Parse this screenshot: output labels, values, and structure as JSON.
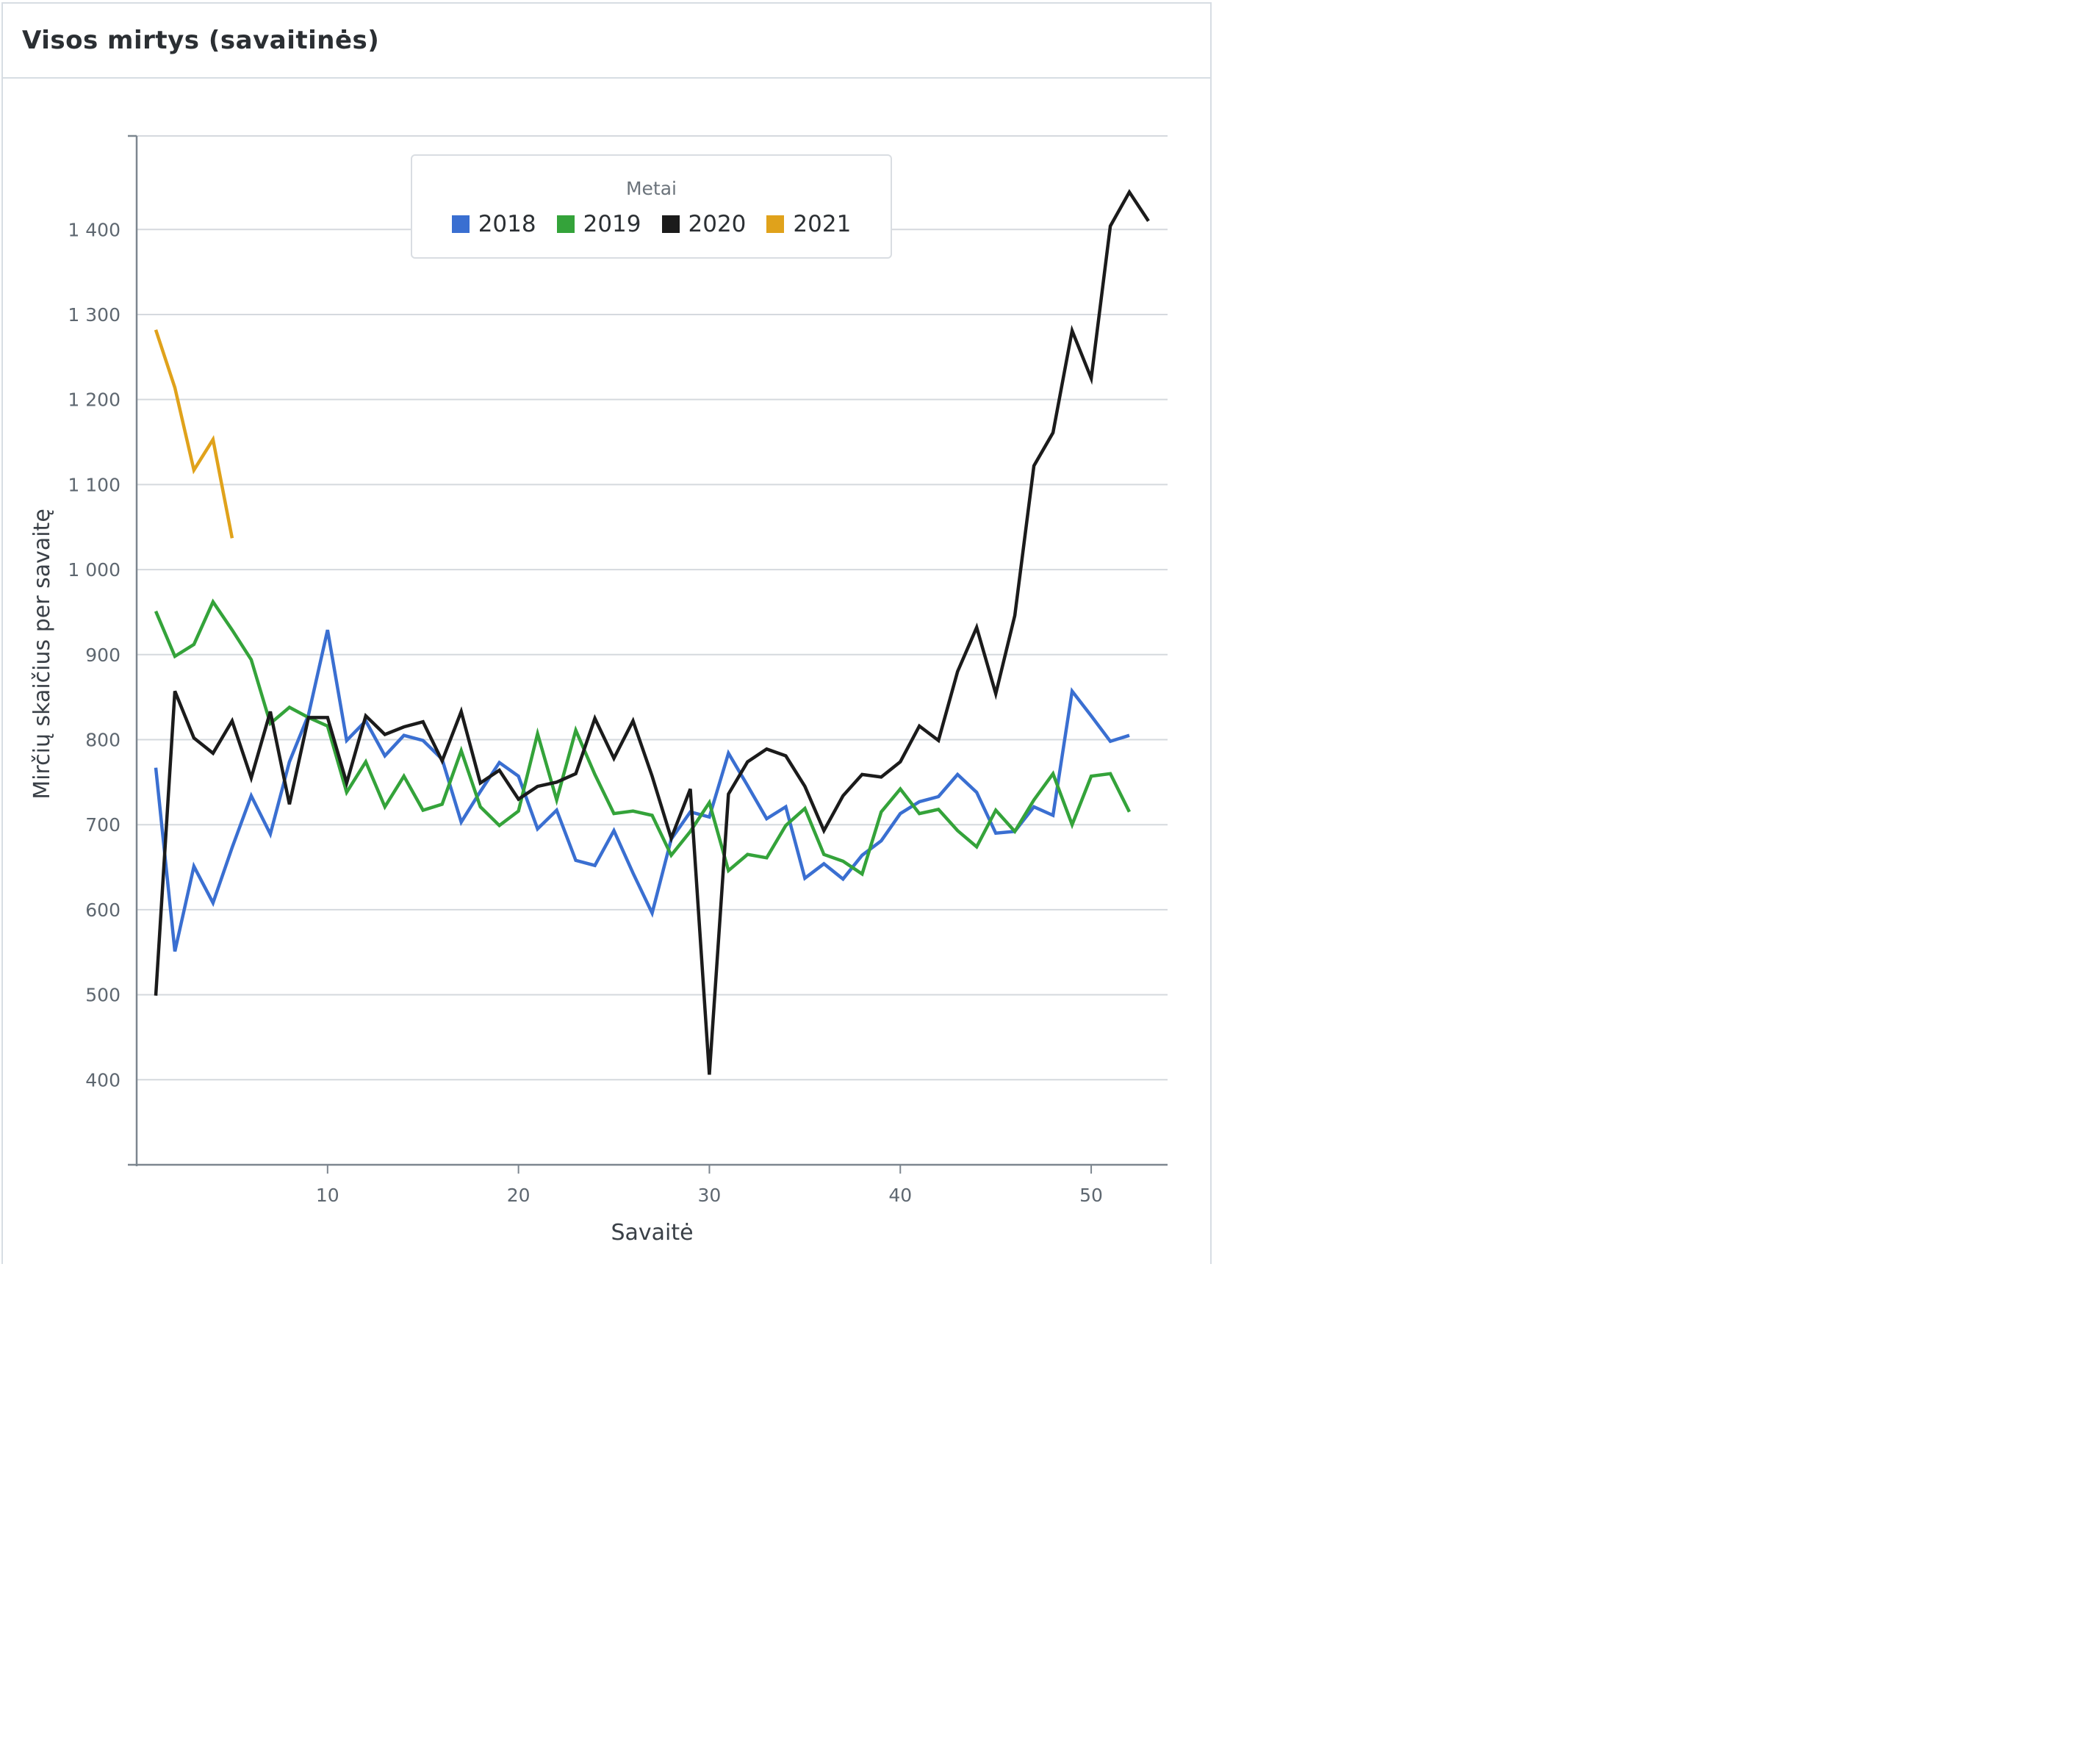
{
  "panel": {
    "title": "Visos mirtys (savaitinės)"
  },
  "colors": {
    "2018": "#3a6fd1",
    "2019": "#34a33a",
    "2020": "#1b1b1b",
    "2021": "#e0a21b",
    "grid": "#d5d9de",
    "axis": "#7d868f",
    "tick_text": "#5e6770"
  },
  "chart_data": {
    "type": "line",
    "title": "Visos mirtys (savaitinės)",
    "xlabel": "Savaitė",
    "ylabel": "Mirčių skaičius per savaitę",
    "xlim": [
      0,
      54
    ],
    "ylim": [
      300,
      1510
    ],
    "x_ticks": [
      10,
      20,
      30,
      40,
      50
    ],
    "y_ticks": [
      400,
      500,
      600,
      700,
      800,
      900,
      1000,
      1100,
      1200,
      1300,
      1400
    ],
    "y_tick_labels": [
      "400",
      "500",
      "600",
      "700",
      "800",
      "900",
      "1 000",
      "1 100",
      "1 200",
      "1 300",
      "1 400"
    ],
    "grid": true,
    "legend": {
      "title": "Metai",
      "placement": "top-center"
    },
    "series": [
      {
        "name": "2018",
        "color": "#3a6fd1",
        "x": [
          1,
          2,
          3,
          4,
          5,
          6,
          7,
          8,
          9,
          10,
          11,
          12,
          13,
          14,
          15,
          16,
          17,
          18,
          19,
          20,
          21,
          22,
          23,
          24,
          25,
          26,
          27,
          28,
          29,
          30,
          31,
          32,
          33,
          34,
          35,
          36,
          37,
          38,
          39,
          40,
          41,
          42,
          43,
          44,
          45,
          46,
          47,
          48,
          49,
          50,
          51,
          52
        ],
        "y": [
          767,
          551,
          651,
          608,
          673,
          734,
          689,
          774,
          829,
          929,
          799,
          822,
          781,
          805,
          799,
          777,
          703,
          739,
          773,
          757,
          695,
          717,
          658,
          652,
          693,
          643,
          596,
          683,
          715,
          709,
          784,
          746,
          707,
          721,
          637,
          654,
          636,
          664,
          681,
          713,
          727,
          733,
          759,
          738,
          690,
          692,
          721,
          711,
          857,
          828,
          798,
          805
        ]
      },
      {
        "name": "2019",
        "color": "#34a33a",
        "x": [
          1,
          2,
          3,
          4,
          5,
          6,
          7,
          8,
          9,
          10,
          11,
          12,
          13,
          14,
          15,
          16,
          17,
          18,
          19,
          20,
          21,
          22,
          23,
          24,
          25,
          26,
          27,
          28,
          29,
          30,
          31,
          32,
          33,
          34,
          35,
          36,
          37,
          38,
          39,
          40,
          41,
          42,
          43,
          44,
          45,
          46,
          47,
          48,
          49,
          50,
          51,
          52
        ],
        "y": [
          951,
          898,
          912,
          962,
          929,
          894,
          819,
          838,
          826,
          816,
          738,
          774,
          721,
          757,
          717,
          724,
          787,
          721,
          699,
          716,
          807,
          729,
          811,
          759,
          713,
          716,
          711,
          664,
          692,
          726,
          646,
          665,
          661,
          699,
          719,
          665,
          657,
          642,
          715,
          742,
          713,
          718,
          693,
          674,
          717,
          692,
          729,
          760,
          700,
          757,
          760,
          715
        ]
      },
      {
        "name": "2020",
        "color": "#1b1b1b",
        "x": [
          1,
          2,
          3,
          4,
          5,
          6,
          7,
          8,
          9,
          10,
          11,
          12,
          13,
          14,
          15,
          16,
          17,
          18,
          19,
          20,
          21,
          22,
          23,
          24,
          25,
          26,
          27,
          28,
          29,
          30,
          31,
          32,
          33,
          34,
          35,
          36,
          37,
          38,
          39,
          40,
          41,
          42,
          43,
          44,
          45,
          46,
          47,
          48,
          49,
          50,
          51,
          52,
          53
        ],
        "y": [
          499,
          857,
          802,
          784,
          822,
          755,
          833,
          724,
          826,
          826,
          749,
          828,
          806,
          815,
          821,
          775,
          833,
          749,
          764,
          730,
          745,
          750,
          760,
          825,
          778,
          822,
          757,
          684,
          742,
          406,
          736,
          774,
          789,
          781,
          745,
          693,
          734,
          759,
          756,
          774,
          816,
          799,
          880,
          932,
          854,
          946,
          1122,
          1161,
          1281,
          1225,
          1404,
          1444,
          1410
        ]
      },
      {
        "name": "2021",
        "color": "#e0a21b",
        "x": [
          1,
          2,
          3,
          4,
          5
        ],
        "y": [
          1282,
          1214,
          1117,
          1153,
          1037
        ]
      }
    ]
  }
}
